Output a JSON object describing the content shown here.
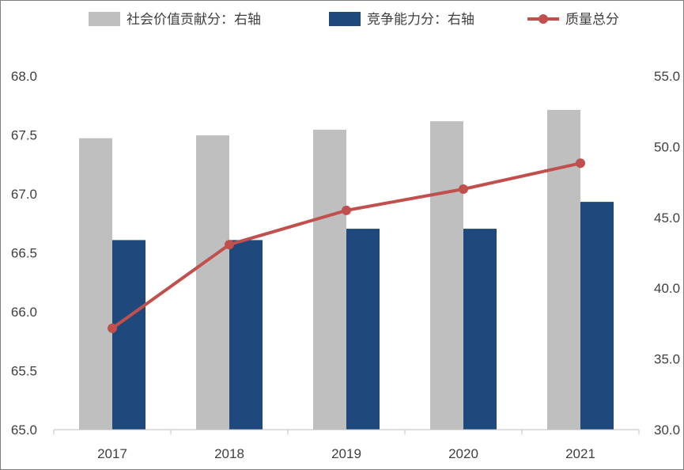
{
  "chart_data": {
    "type": "bar",
    "categories": [
      "2017",
      "2018",
      "2019",
      "2020",
      "2021"
    ],
    "series": [
      {
        "name": "社会价值贡献分：右轴",
        "type": "bar",
        "axis": "right",
        "color": "#bfbfbf",
        "values": [
          50.6,
          50.8,
          51.2,
          51.8,
          52.6
        ]
      },
      {
        "name": "竞争能力分：右轴",
        "type": "bar",
        "axis": "right",
        "color": "#1f497d",
        "values": [
          43.4,
          43.4,
          44.2,
          44.2,
          46.1
        ]
      },
      {
        "name": "质量总分",
        "type": "line",
        "axis": "left",
        "color": "#c0504d",
        "values": [
          65.86,
          66.57,
          66.86,
          67.04,
          67.26
        ]
      }
    ],
    "left_axis": {
      "min": 65.0,
      "max": 68.0,
      "step": 0.5,
      "ticks": [
        "65.0",
        "65.5",
        "66.0",
        "66.5",
        "67.0",
        "67.5",
        "68.0"
      ]
    },
    "right_axis": {
      "min": 30.0,
      "max": 55.0,
      "step": 5,
      "ticks": [
        "30.0",
        "35.0",
        "40.0",
        "45.0",
        "50.0",
        "55.0"
      ]
    },
    "legend_position": "top",
    "grid": false
  }
}
